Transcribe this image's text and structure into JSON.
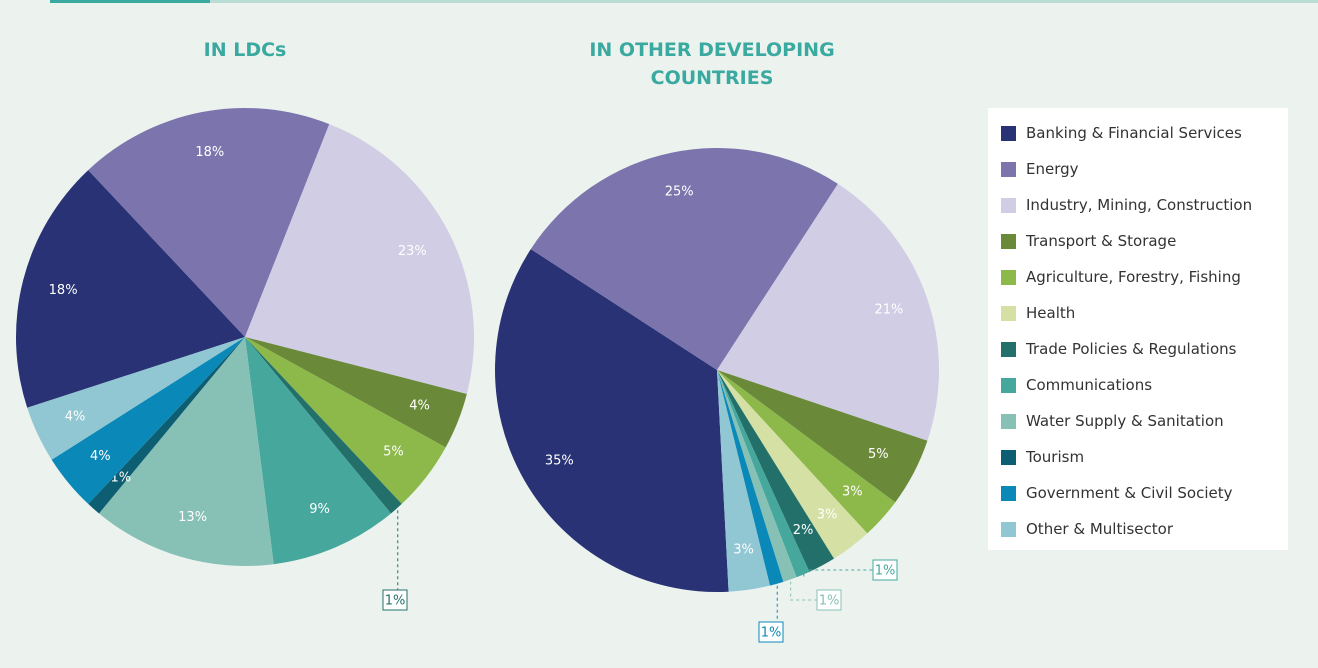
{
  "legend": {
    "items": [
      {
        "name": "Banking & Financial Services",
        "color": "#283275"
      },
      {
        "name": "Energy",
        "color": "#7b74ad"
      },
      {
        "name": "Industry, Mining, Construction",
        "color": "#d0cde4"
      },
      {
        "name": "Transport & Storage",
        "color": "#6a8a3a"
      },
      {
        "name": "Agriculture, Forestry, Fishing",
        "color": "#8db84a"
      },
      {
        "name": "Health",
        "color": "#d5e0a5"
      },
      {
        "name": "Trade Policies & Regulations",
        "color": "#23706a"
      },
      {
        "name": "Communications",
        "color": "#46a89c"
      },
      {
        "name": "Water Supply & Sanitation",
        "color": "#87c0b5"
      },
      {
        "name": "Tourism",
        "color": "#0d5e73"
      },
      {
        "name": "Government & Civil Society",
        "color": "#0a89b8"
      },
      {
        "name": "Other & Multisector",
        "color": "#91c6d3"
      }
    ]
  },
  "chart_data": [
    {
      "type": "pie",
      "title": "IN LDCs",
      "categories": [
        "Banking & Financial Services",
        "Energy",
        "Industry, Mining, Construction",
        "Transport & Storage",
        "Agriculture, Forestry, Fishing",
        "Trade Policies & Regulations",
        "Communications",
        "Water Supply & Sanitation",
        "Tourism",
        "Government & Civil Society",
        "Other & Multisector"
      ],
      "values": [
        18,
        18,
        23,
        4,
        5,
        1,
        9,
        13,
        1,
        4,
        4
      ],
      "value_labels": [
        "18%",
        "18%",
        "23%",
        "4%",
        "5%",
        "1%",
        "9%",
        "13%",
        "1%",
        "4%",
        "4%"
      ]
    },
    {
      "type": "pie",
      "title": "IN OTHER DEVELOPING COUNTRIES",
      "categories": [
        "Banking & Financial Services",
        "Energy",
        "Industry, Mining, Construction",
        "Transport & Storage",
        "Agriculture, Forestry, Fishing",
        "Health",
        "Trade Policies & Regulations",
        "Communications",
        "Water Supply & Sanitation",
        "Government & Civil Society",
        "Other & Multisector"
      ],
      "values": [
        35,
        25,
        21,
        5,
        3,
        3,
        2,
        1,
        1,
        1,
        3
      ],
      "value_labels": [
        "35%",
        "25%",
        "21%",
        "5%",
        "3%",
        "3%",
        "2%",
        "1%",
        "1%",
        "1%",
        "3%"
      ]
    }
  ]
}
